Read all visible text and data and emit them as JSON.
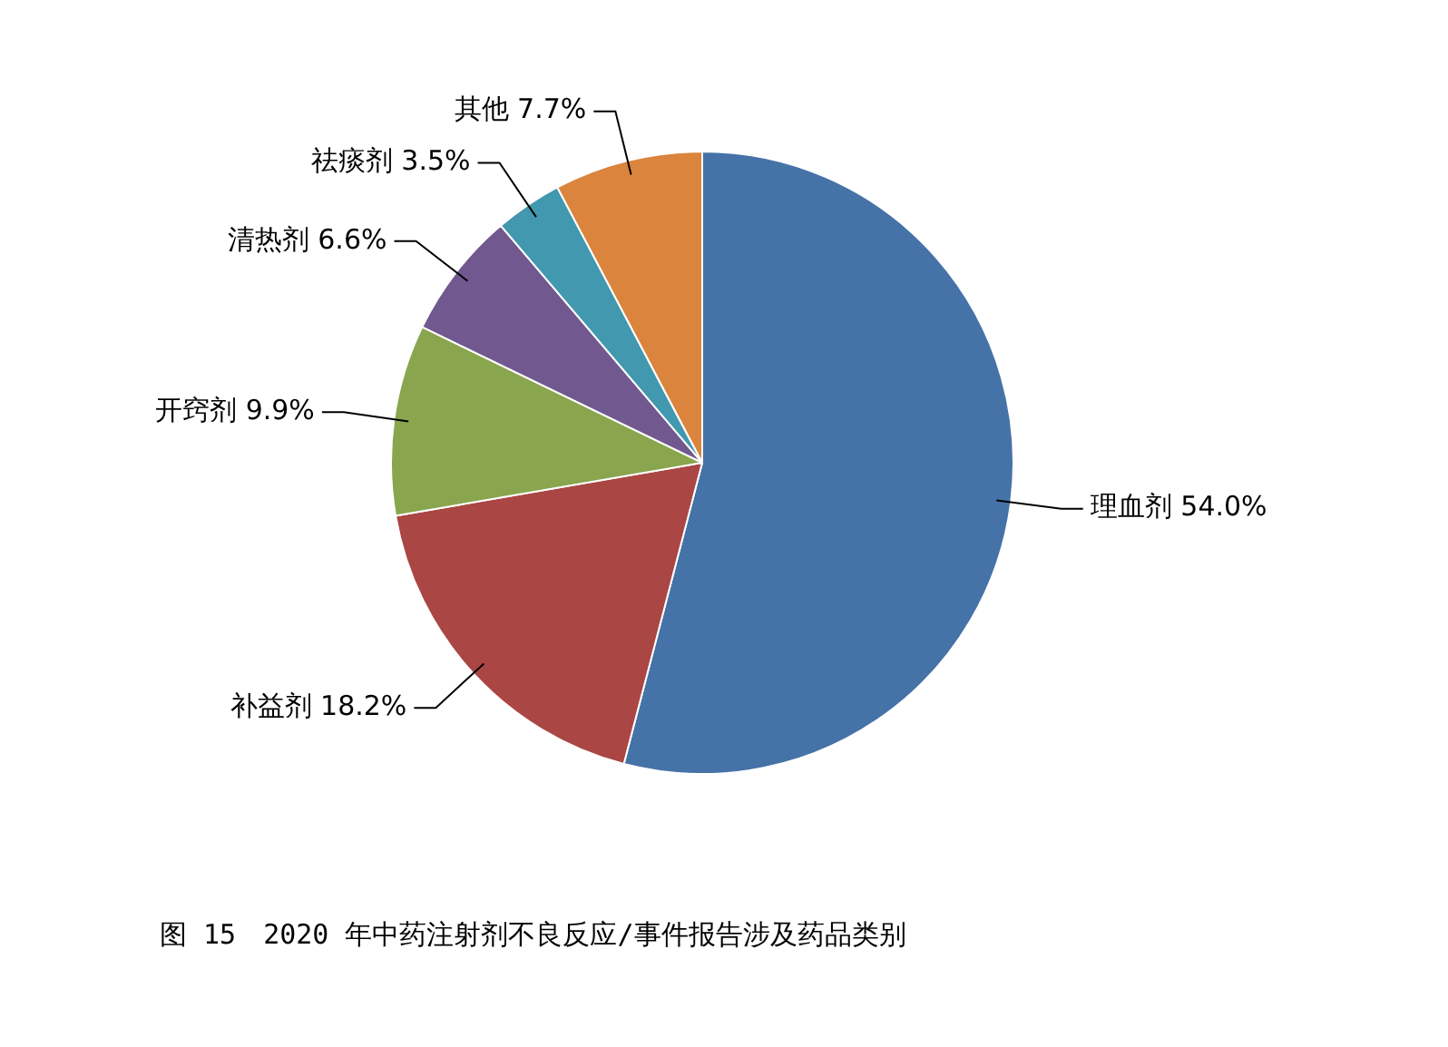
{
  "chart_data": {
    "type": "pie",
    "title": "图 15　2020 年中药注射剂不良反应/事件报告涉及药品类别",
    "categories": [
      "理血剂",
      "补益剂",
      "开窍剂",
      "清热剂",
      "祛痰剂",
      "其他"
    ],
    "values": [
      54.0,
      18.2,
      9.9,
      6.6,
      3.5,
      7.7
    ],
    "value_labels": [
      "54.0%",
      "18.2%",
      "9.9%",
      "6.6%",
      "3.5%",
      "7.7%"
    ],
    "colors": [
      "#4572a7",
      "#aa4643",
      "#89a54e",
      "#71588f",
      "#4198af",
      "#db843d"
    ],
    "legend": false
  }
}
